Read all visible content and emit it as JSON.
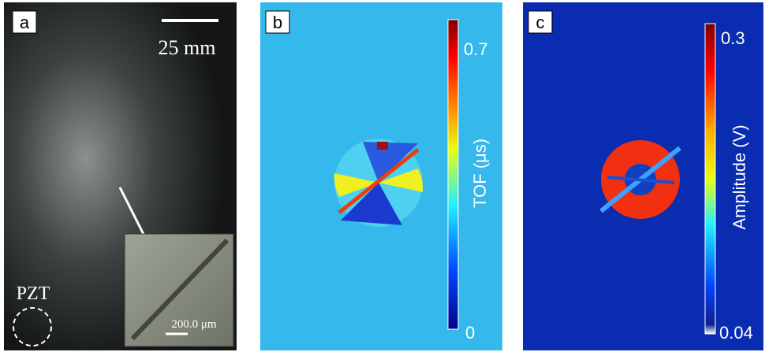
{
  "panels": [
    {
      "label": "a",
      "scale_bar": "25 mm",
      "transducer": "PZT",
      "inset_scale": "200.0 μm"
    },
    {
      "label": "b",
      "colorbar": {
        "title": "TOF (μs)",
        "top": "0.7",
        "bottom": "0"
      }
    },
    {
      "label": "c",
      "colorbar": {
        "title": "Amplitude (V)",
        "top": "0.3",
        "bottom": "0.04"
      }
    }
  ]
}
